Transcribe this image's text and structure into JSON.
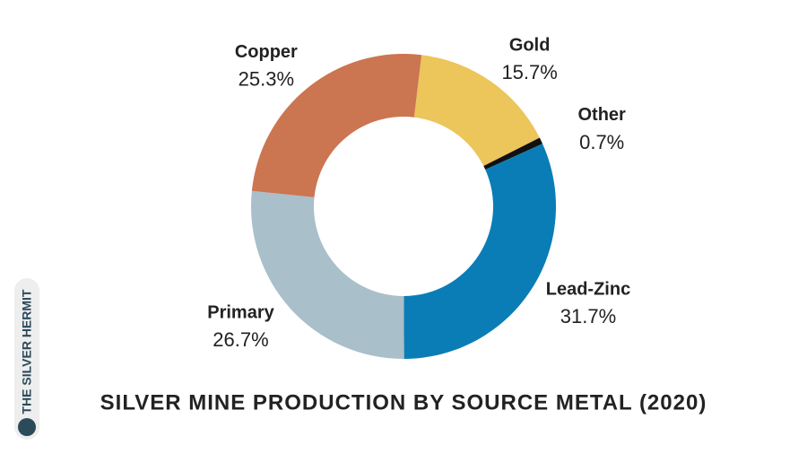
{
  "chart_data": {
    "type": "pie",
    "title": "SILVER MINE PRODUCTION BY SOURCE METAL (2020)",
    "categories": [
      "Gold",
      "Other",
      "Lead-Zinc",
      "Primary",
      "Copper"
    ],
    "values": [
      15.7,
      0.7,
      31.7,
      26.7,
      25.3
    ],
    "value_labels": [
      "15.7%",
      "0.7%",
      "31.7%",
      "26.7%",
      "25.3%"
    ],
    "colors": [
      "#ecc55b",
      "#111111",
      "#0a7db6",
      "#a9bfca",
      "#cc7551"
    ]
  },
  "watermark": "THE SILVER HERMIT"
}
